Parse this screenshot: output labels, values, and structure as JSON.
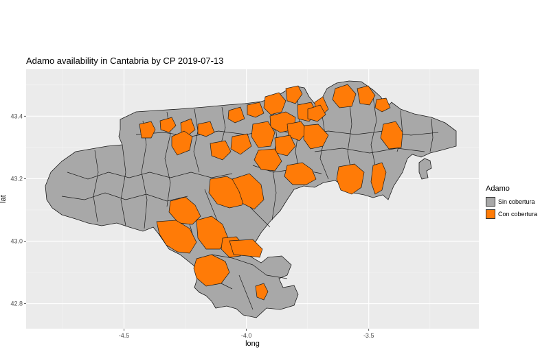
{
  "chart_data": {
    "type": "map",
    "title": "Adamo availability in Cantabria by CP 2019-07-13",
    "xlabel": "long",
    "ylabel": "lat",
    "xlim": [
      -4.9,
      -3.05
    ],
    "ylim": [
      42.72,
      43.55
    ],
    "x_ticks": [
      {
        "value": -4.5,
        "label": "-4.5"
      },
      {
        "value": -4.0,
        "label": "-4.0"
      },
      {
        "value": -3.5,
        "label": "-3.5"
      }
    ],
    "y_ticks": [
      {
        "value": 42.8,
        "label": "42.8"
      },
      {
        "value": 43.0,
        "label": "43.0"
      },
      {
        "value": 43.2,
        "label": "43.2"
      },
      {
        "value": 43.4,
        "label": "43.4"
      }
    ],
    "grid": true,
    "legend": {
      "title": "Adamo",
      "position": "right",
      "entries": [
        {
          "label": "Sin cobertura",
          "color": "#a8a8a8"
        },
        {
          "label": "Con cobertura",
          "color": "#ff7b07"
        }
      ]
    }
  }
}
